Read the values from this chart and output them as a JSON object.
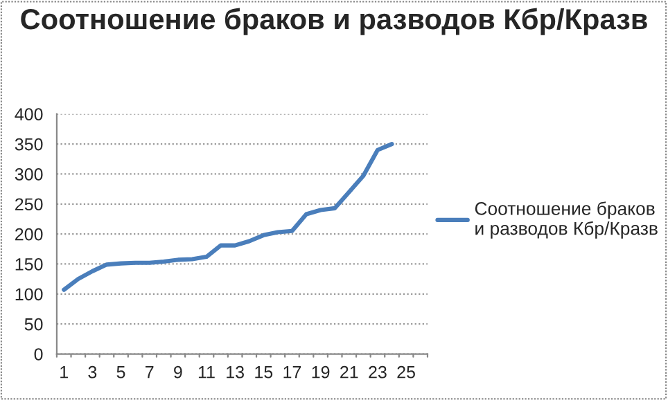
{
  "chart_data": {
    "type": "line",
    "title": "Соотношение браков и разводов Кбр/Кразв",
    "categories": [
      "1",
      null,
      "3",
      null,
      "5",
      null,
      "7",
      null,
      "9",
      null,
      "11",
      null,
      "13",
      null,
      "15",
      null,
      "17",
      null,
      "19",
      null,
      "21",
      null,
      "23",
      null,
      "25",
      null
    ],
    "series": [
      {
        "name": "Соотношение браков и разводов Кбр/Кразв",
        "color": "#4a7ebb",
        "values": [
          107,
          125,
          138,
          149,
          151,
          152,
          152,
          154,
          157,
          158,
          162,
          181,
          181,
          188,
          198,
          203,
          205,
          233,
          240,
          243,
          270,
          297,
          340,
          350,
          null,
          null
        ]
      }
    ],
    "ylim": [
      0,
      400
    ],
    "yticks": [
      0,
      50,
      100,
      150,
      200,
      250,
      300,
      350,
      400
    ],
    "grid": "y",
    "legend": "right",
    "marker": "none",
    "line_style": "solid"
  }
}
